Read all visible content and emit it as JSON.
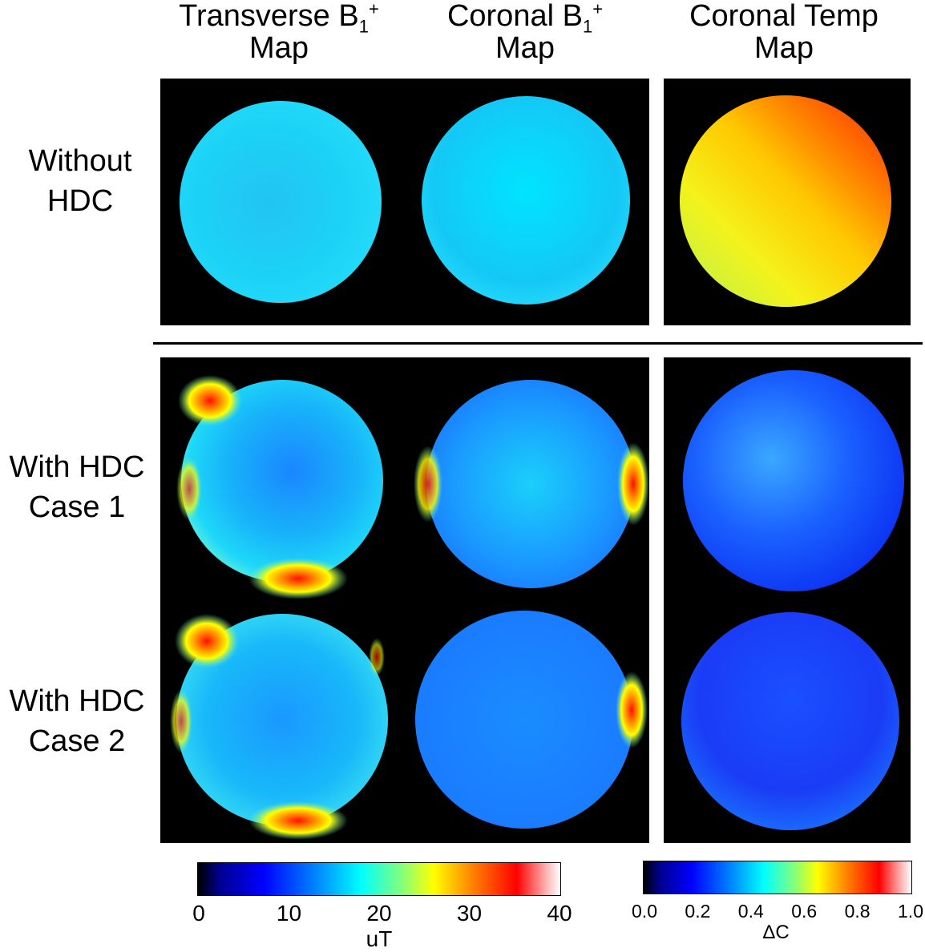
{
  "columns": {
    "transverse_b1": {
      "line1": "Transverse B",
      "sub": "1",
      "sup": "+",
      "line2": "Map"
    },
    "coronal_b1": {
      "line1": "Coronal B",
      "sub": "1",
      "sup": "+",
      "line2": "Map"
    },
    "coronal_temp": {
      "line1": "Coronal Temp",
      "line2": "Map"
    }
  },
  "rows": {
    "without_hdc": {
      "line1": "Without",
      "line2": "HDC"
    },
    "with_hdc_case1": {
      "line1": "With HDC",
      "line2": "Case 1"
    },
    "with_hdc_case2": {
      "line1": "With HDC",
      "line2": "Case 2"
    }
  },
  "colorbar_b1": {
    "unit": "uT",
    "ticks": [
      "0",
      "10",
      "20",
      "30",
      "40"
    ],
    "range": [
      0,
      40
    ]
  },
  "colorbar_temp": {
    "unit": "ΔC",
    "ticks": [
      "0.0",
      "0.2",
      "0.4",
      "0.6",
      "0.8",
      "1.0"
    ],
    "range": [
      0,
      1
    ]
  },
  "colors": {
    "jet_dark_blue": "#00008f",
    "jet_blue": "#0060ff",
    "jet_cyan": "#00e8ff",
    "jet_yellow": "#ffff00",
    "jet_red": "#ff1000",
    "panel_background": "#000000"
  }
}
